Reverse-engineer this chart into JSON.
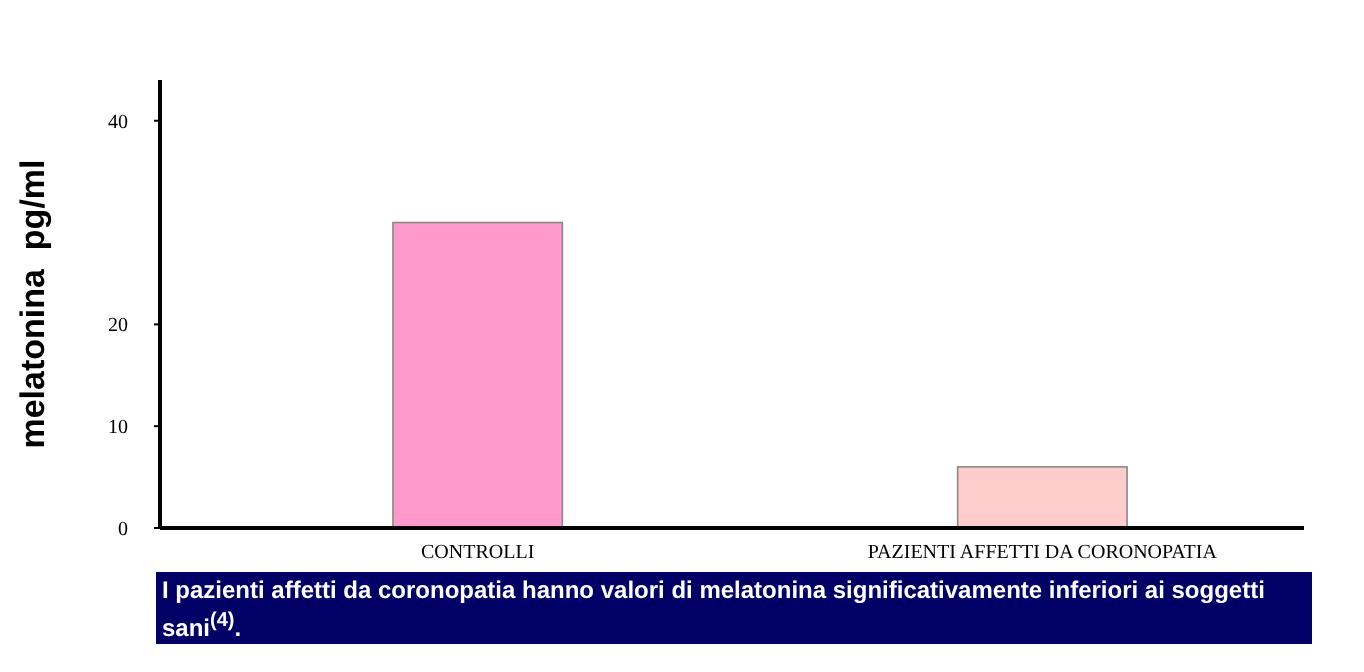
{
  "chart_data": {
    "type": "bar",
    "ylabel": "melatonina  pg/ml",
    "categories": [
      "CONTROLLI",
      "PAZIENTI AFFETTI DA CORONOPATIA"
    ],
    "values": [
      30,
      6
    ],
    "colors": [
      "#ff99cc",
      "#ffcccc"
    ],
    "ylim": [
      0,
      44
    ],
    "yticks": [
      0,
      10,
      20,
      40
    ],
    "grid": false,
    "annotations": [
      "I pazienti affetti da coronopatia hanno valori di melatonina significativamente inferiori ai soggetti sani$^{(4)}$."
    ]
  }
}
